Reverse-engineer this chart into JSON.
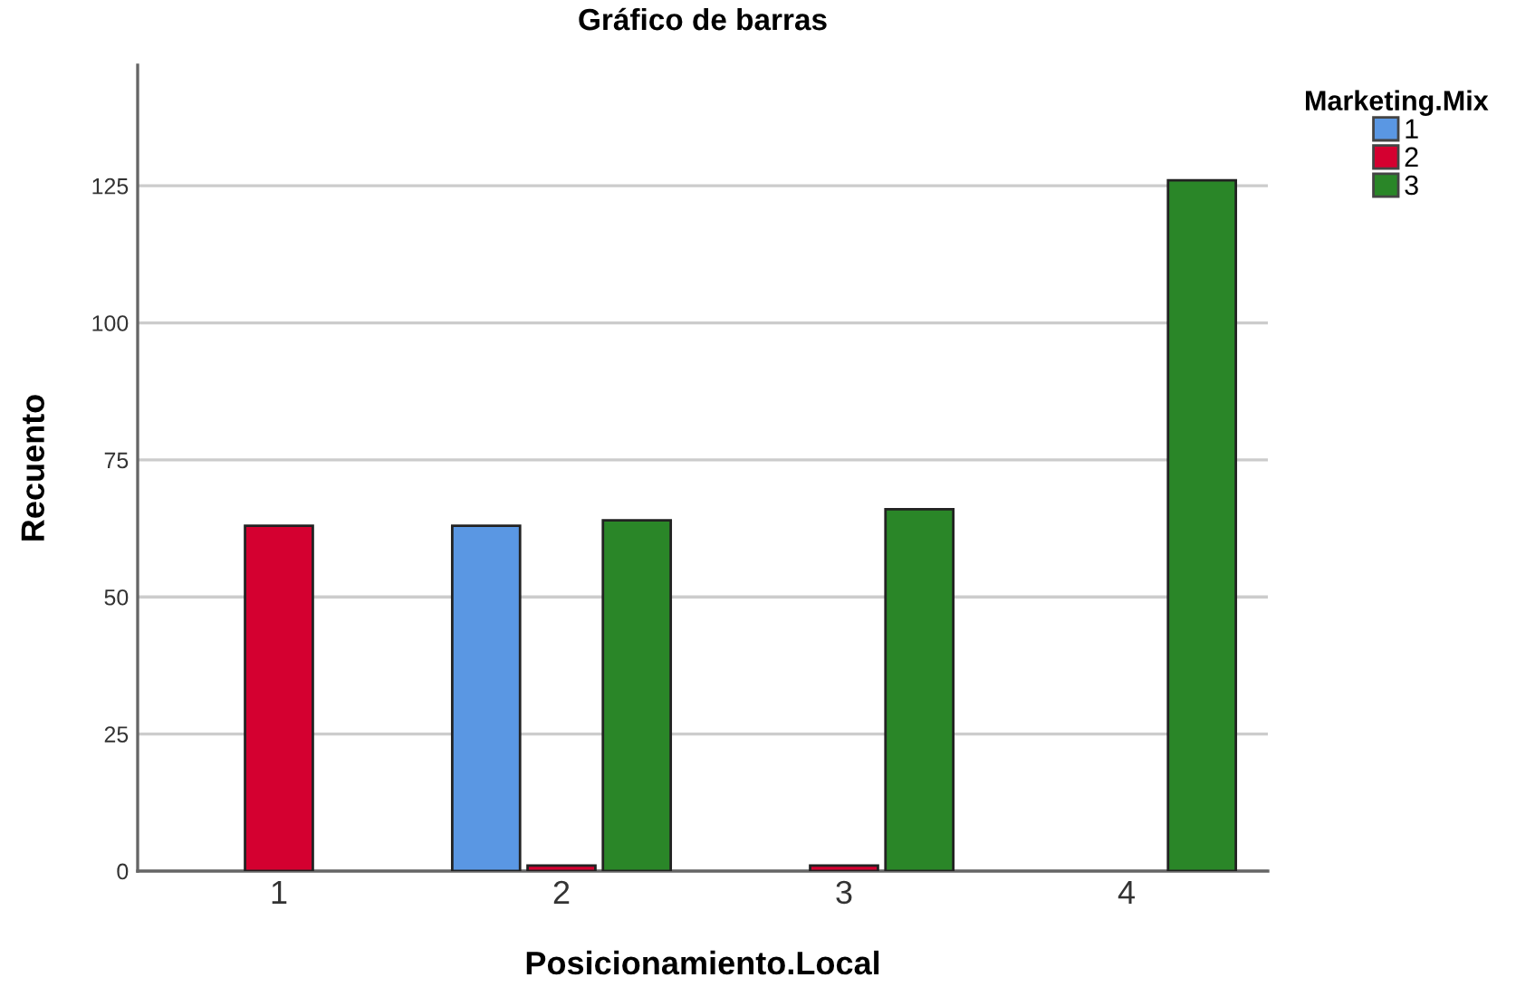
{
  "chart_data": {
    "type": "bar",
    "title": "Gráfico de barras",
    "xlabel": "Posicionamiento.Local",
    "ylabel": "Recuento",
    "legend_title": "Marketing.Mix",
    "categories": [
      "1",
      "2",
      "3",
      "4"
    ],
    "series": [
      {
        "name": "1",
        "color": "#5a97e3",
        "values": [
          null,
          63,
          null,
          null
        ]
      },
      {
        "name": "2",
        "color": "#d40030",
        "values": [
          63,
          1,
          1,
          null
        ]
      },
      {
        "name": "3",
        "color": "#2a8628",
        "values": [
          null,
          64,
          66,
          126
        ]
      }
    ],
    "ylim": [
      0,
      147
    ],
    "yticks": [
      0,
      25,
      50,
      75,
      100,
      125
    ],
    "grid": "y",
    "legend": "top right"
  }
}
